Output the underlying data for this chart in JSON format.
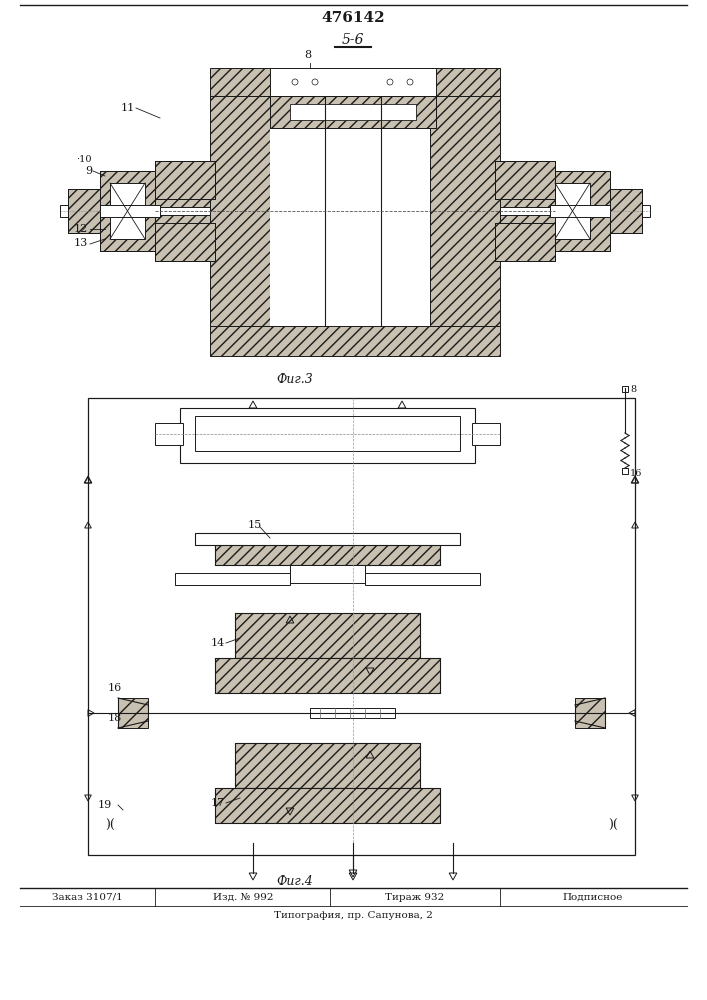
{
  "title": "476142",
  "section_label": "5-6",
  "fig3_label": "Фиг.3",
  "fig4_label": "Фиг.4",
  "footer_col1": "Заказ 3107/1",
  "footer_col2": "Изд. № 992",
  "footer_col3": "Тираж 932",
  "footer_col4": "Подписное",
  "footer_line2": "Типография, пр. Сапунова, 2",
  "bg_color": "#ffffff",
  "line_color": "#1a1a1a",
  "hatch_fc": "#c8c0b0"
}
